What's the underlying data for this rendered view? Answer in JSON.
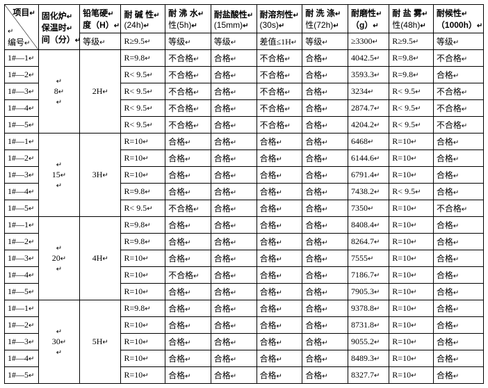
{
  "header": {
    "diag_top": "项目",
    "diag_bottom": "编号",
    "cure_time": [
      "固化炉",
      "保温时",
      "间（分）"
    ],
    "pencil": [
      "铅笔硬",
      "度（H）"
    ],
    "alkali": [
      "耐 碱 性",
      "(24h)"
    ],
    "boil": [
      "耐 沸 水",
      "性(5h)"
    ],
    "hcl": [
      "耐盐酸性",
      "(15mm)"
    ],
    "solvent": [
      "耐溶剂性",
      "(30s)"
    ],
    "wash": [
      "耐 洗 涤",
      "性(72h)"
    ],
    "abrasion": [
      "耐磨性",
      "（g）"
    ],
    "salt": [
      "耐 盐 雾",
      "性(48h)"
    ],
    "weather": [
      "耐候性",
      "（1000h）"
    ]
  },
  "criteria": {
    "pencil": "等级",
    "alkali": "R≥9.5",
    "boil": "等级",
    "hcl": "等级",
    "solvent": "差值≤1H",
    "wash": "等级",
    "abrasion": "≥3300",
    "salt": "R≥9.5",
    "weather": "等级"
  },
  "groups": [
    {
      "time": "8",
      "pencil": "2H",
      "rows": [
        {
          "id": "1#—1",
          "alkali": "R=9.8",
          "boil": "不合格",
          "hcl": "合格",
          "solvent": "不合格",
          "wash": "合格",
          "abrasion": "4042.5",
          "salt": "R=9.8",
          "weather": "不合格"
        },
        {
          "id": "1#—2",
          "alkali": "R< 9.5",
          "boil": "不合格",
          "hcl": "合格",
          "solvent": "不合格",
          "wash": "合格",
          "abrasion": "3593.3",
          "salt": "R=9.8",
          "weather": "合格"
        },
        {
          "id": "1#—3",
          "alkali": "R< 9.5",
          "boil": "不合格",
          "hcl": "合格",
          "solvent": "不合格",
          "wash": "合格",
          "abrasion": "3234",
          "salt": "R< 9.5",
          "weather": "不合格"
        },
        {
          "id": "1#—4",
          "alkali": "R< 9.5",
          "boil": "不合格",
          "hcl": "合格",
          "solvent": "不合格",
          "wash": "合格",
          "abrasion": "2874.7",
          "salt": "R< 9.5",
          "weather": "不合格"
        },
        {
          "id": "1#—5",
          "alkali": "R< 9.5",
          "boil": "不合格",
          "hcl": "合格",
          "solvent": "不合格",
          "wash": "合格",
          "abrasion": "4204.2",
          "salt": "R< 9.5",
          "weather": "不合格"
        }
      ]
    },
    {
      "time": "15",
      "pencil": "3H",
      "rows": [
        {
          "id": "1#—1",
          "alkali": "R=10",
          "boil": "合格",
          "hcl": "合格",
          "solvent": "合格",
          "wash": "合格",
          "abrasion": "6468",
          "salt": "R=10",
          "weather": "合格"
        },
        {
          "id": "1#—2",
          "alkali": "R=10",
          "boil": "合格",
          "hcl": "合格",
          "solvent": "合格",
          "wash": "合格",
          "abrasion": "6144.6",
          "salt": "R=10",
          "weather": "合格"
        },
        {
          "id": "1#—3",
          "alkali": "R=10",
          "boil": "合格",
          "hcl": "合格",
          "solvent": "合格",
          "wash": "合格",
          "abrasion": "6791.4",
          "salt": "R=10",
          "weather": "合格"
        },
        {
          "id": "1#—4",
          "alkali": "R=9.8",
          "boil": "合格",
          "hcl": "合格",
          "solvent": "合格",
          "wash": "合格",
          "abrasion": "7438.2",
          "salt": "R< 9.5",
          "weather": "合格"
        },
        {
          "id": "1#—5",
          "alkali": "R< 9.5",
          "boil": "不合格",
          "hcl": "合格",
          "solvent": "合格",
          "wash": "合格",
          "abrasion": "7350",
          "salt": "R=10",
          "weather": "不合格"
        }
      ]
    },
    {
      "time": "20",
      "pencil": "4H",
      "rows": [
        {
          "id": "1#—1",
          "alkali": "R=9.8",
          "boil": "合格",
          "hcl": "合格",
          "solvent": "合格",
          "wash": "合格",
          "abrasion": "8408.4",
          "salt": "R=10",
          "weather": "合格"
        },
        {
          "id": "1#—2",
          "alkali": "R=9.8",
          "boil": "合格",
          "hcl": "合格",
          "solvent": "合格",
          "wash": "合格",
          "abrasion": "8264.7",
          "salt": "R=10",
          "weather": "合格"
        },
        {
          "id": "1#—3",
          "alkali": "R=10",
          "boil": "合格",
          "hcl": "合格",
          "solvent": "合格",
          "wash": "合格",
          "abrasion": "7555",
          "salt": "R=10",
          "weather": "合格"
        },
        {
          "id": "1#—4",
          "alkali": "R=10",
          "boil": "不合格",
          "hcl": "合格",
          "solvent": "合格",
          "wash": "合格",
          "abrasion": "7186.7",
          "salt": "R=10",
          "weather": "合格"
        },
        {
          "id": "1#—5",
          "alkali": "R=10",
          "boil": "合格",
          "hcl": "合格",
          "solvent": "合格",
          "wash": "合格",
          "abrasion": "7905.3",
          "salt": "R=10",
          "weather": "合格"
        }
      ]
    },
    {
      "time": "30",
      "pencil": "5H",
      "rows": [
        {
          "id": "1#—1",
          "alkali": "R=9.8",
          "boil": "合格",
          "hcl": "合格",
          "solvent": "合格",
          "wash": "合格",
          "abrasion": "9378.8",
          "salt": "R=10",
          "weather": "合格"
        },
        {
          "id": "1#—2",
          "alkali": "R=10",
          "boil": "合格",
          "hcl": "合格",
          "solvent": "合格",
          "wash": "合格",
          "abrasion": "8731.8",
          "salt": "R=10",
          "weather": "合格"
        },
        {
          "id": "1#—3",
          "alkali": "R=10",
          "boil": "合格",
          "hcl": "合格",
          "solvent": "合格",
          "wash": "合格",
          "abrasion": "9055.2",
          "salt": "R=10",
          "weather": "合格"
        },
        {
          "id": "1#—4",
          "alkali": "R=10",
          "boil": "合格",
          "hcl": "合格",
          "solvent": "合格",
          "wash": "合格",
          "abrasion": "8489.3",
          "salt": "R=10",
          "weather": "合格"
        },
        {
          "id": "1#—5",
          "alkali": "R=10",
          "boil": "合格",
          "hcl": "合格",
          "solvent": "合格",
          "wash": "合格",
          "abrasion": "8327.7",
          "salt": "R=10",
          "weather": "合格"
        }
      ]
    }
  ],
  "ret_mark": "↵"
}
